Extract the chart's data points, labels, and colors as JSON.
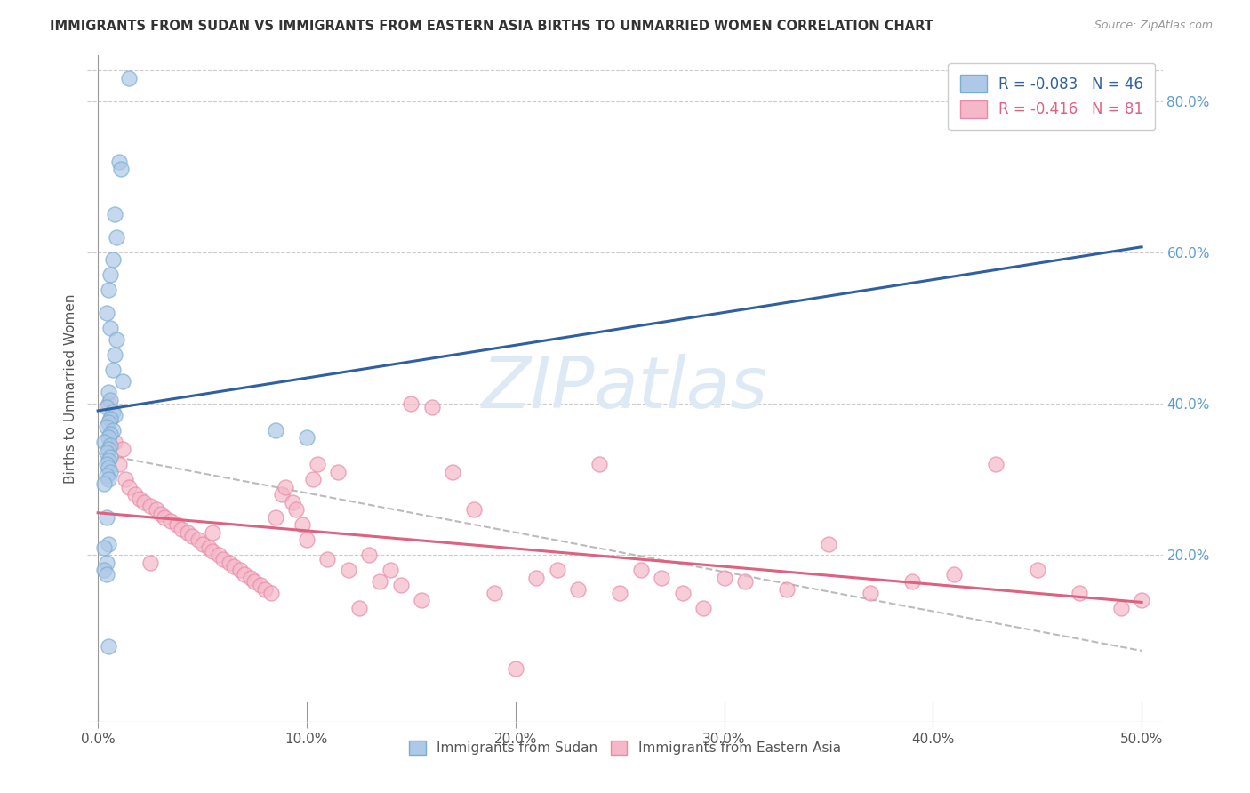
{
  "title": "IMMIGRANTS FROM SUDAN VS IMMIGRANTS FROM EASTERN ASIA BIRTHS TO UNMARRIED WOMEN CORRELATION CHART",
  "source": "Source: ZipAtlas.com",
  "ylabel": "Births to Unmarried Women",
  "x_tick_labels": [
    "0.0%",
    "10.0%",
    "20.0%",
    "30.0%",
    "40.0%",
    "50.0%"
  ],
  "x_tick_values": [
    0.0,
    10.0,
    20.0,
    30.0,
    40.0,
    50.0
  ],
  "y_tick_labels": [
    "20.0%",
    "40.0%",
    "60.0%",
    "80.0%"
  ],
  "y_tick_values": [
    20.0,
    40.0,
    60.0,
    80.0
  ],
  "xlim": [
    -0.5,
    51.0
  ],
  "ylim": [
    -2.0,
    86.0
  ],
  "legend_R": [
    -0.083,
    -0.416
  ],
  "legend_N": [
    46,
    81
  ],
  "blue_fill": "#aec8e8",
  "blue_edge": "#7aaed0",
  "pink_fill": "#f4b8c8",
  "pink_edge": "#e88aa8",
  "blue_line_color": "#3060a0",
  "pink_line_color": "#e06080",
  "dash_line_color": "#bbbbbb",
  "watermark_color": "#ddeaf5",
  "sudan_x": [
    1.5,
    1.0,
    1.1,
    0.8,
    0.9,
    0.7,
    0.6,
    0.5,
    0.4,
    0.6,
    0.9,
    0.8,
    0.7,
    1.2,
    0.5,
    0.6,
    0.4,
    0.7,
    0.8,
    0.6,
    0.5,
    0.4,
    0.7,
    0.6,
    0.5,
    0.3,
    0.6,
    0.5,
    0.4,
    0.6,
    0.5,
    0.4,
    0.5,
    0.6,
    0.4,
    0.5,
    8.5,
    10.0,
    0.3,
    0.4,
    0.5,
    0.3,
    0.4,
    0.3,
    0.4,
    0.5
  ],
  "sudan_y": [
    83.0,
    72.0,
    71.0,
    65.0,
    62.0,
    59.0,
    57.0,
    55.0,
    52.0,
    50.0,
    48.5,
    46.5,
    44.5,
    43.0,
    41.5,
    40.5,
    39.5,
    39.0,
    38.5,
    38.0,
    37.5,
    37.0,
    36.5,
    36.0,
    35.5,
    35.0,
    34.5,
    34.0,
    33.5,
    33.0,
    32.5,
    32.0,
    31.5,
    31.0,
    30.5,
    30.0,
    36.5,
    35.5,
    29.5,
    25.0,
    21.5,
    21.0,
    19.0,
    18.0,
    17.5,
    8.0
  ],
  "eastern_asia_x": [
    0.5,
    0.8,
    1.0,
    1.3,
    1.5,
    1.8,
    2.0,
    2.2,
    2.5,
    2.8,
    3.0,
    3.2,
    3.5,
    3.8,
    4.0,
    4.3,
    4.5,
    4.8,
    5.0,
    5.3,
    5.5,
    5.8,
    6.0,
    6.3,
    6.5,
    6.8,
    7.0,
    7.3,
    7.5,
    7.8,
    8.0,
    8.3,
    8.5,
    8.8,
    9.0,
    9.3,
    9.5,
    9.8,
    10.0,
    10.3,
    10.5,
    11.0,
    11.5,
    12.0,
    12.5,
    13.0,
    13.5,
    14.0,
    14.5,
    15.0,
    15.5,
    16.0,
    17.0,
    18.0,
    19.0,
    20.0,
    21.0,
    22.0,
    23.0,
    24.0,
    25.0,
    26.0,
    27.0,
    28.0,
    29.0,
    30.0,
    31.0,
    33.0,
    35.0,
    37.0,
    39.0,
    41.0,
    43.0,
    45.0,
    47.0,
    49.0,
    50.0,
    0.6,
    1.2,
    2.5,
    5.5
  ],
  "eastern_asia_y": [
    40.0,
    35.0,
    32.0,
    30.0,
    29.0,
    28.0,
    27.5,
    27.0,
    26.5,
    26.0,
    25.5,
    25.0,
    24.5,
    24.0,
    23.5,
    23.0,
    22.5,
    22.0,
    21.5,
    21.0,
    20.5,
    20.0,
    19.5,
    19.0,
    18.5,
    18.0,
    17.5,
    17.0,
    16.5,
    16.0,
    15.5,
    15.0,
    25.0,
    28.0,
    29.0,
    27.0,
    26.0,
    24.0,
    22.0,
    30.0,
    32.0,
    19.5,
    31.0,
    18.0,
    13.0,
    20.0,
    16.5,
    18.0,
    16.0,
    40.0,
    14.0,
    39.5,
    31.0,
    26.0,
    15.0,
    5.0,
    17.0,
    18.0,
    15.5,
    32.0,
    15.0,
    18.0,
    17.0,
    15.0,
    13.0,
    17.0,
    16.5,
    15.5,
    21.5,
    15.0,
    16.5,
    17.5,
    32.0,
    18.0,
    15.0,
    13.0,
    14.0,
    38.0,
    34.0,
    19.0,
    23.0
  ],
  "background_color": "#ffffff",
  "grid_color": "#cccccc"
}
